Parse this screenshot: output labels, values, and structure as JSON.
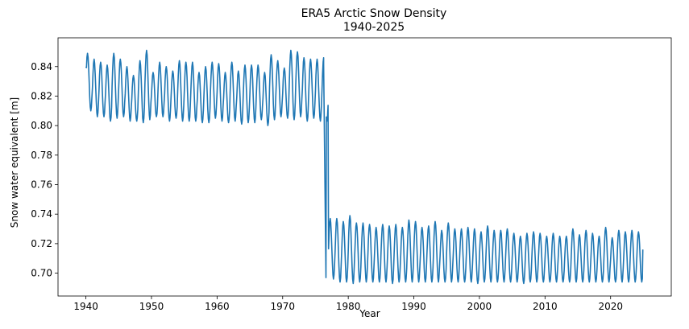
{
  "chart_data": {
    "type": "line",
    "title": "ERA5 Arctic Snow Density",
    "subtitle": "1940-2025",
    "xlabel": "Year",
    "ylabel": "Snow water equivalent [m]",
    "xlim": [
      1935.75,
      2029.25
    ],
    "ylim": [
      0.6845,
      0.8595
    ],
    "xticks": [
      1940,
      1950,
      1960,
      1970,
      1980,
      1990,
      2000,
      2010,
      2020
    ],
    "yticks": [
      0.7,
      0.72,
      0.74,
      0.76,
      0.78,
      0.8,
      0.82,
      0.84
    ],
    "ytick_labels": [
      "0.70",
      "0.72",
      "0.74",
      "0.76",
      "0.78",
      "0.80",
      "0.82",
      "0.84"
    ],
    "grid": false,
    "series_color": "#1f77b4",
    "series": [
      {
        "x_start": 1940.0,
        "x_step": 0.0833333,
        "seasonal_max": [
          0.849,
          0.845,
          0.843,
          0.841,
          0.849,
          0.845,
          0.84,
          0.834,
          0.844,
          0.851,
          0.836,
          0.843,
          0.84,
          0.837,
          0.844,
          0.843,
          0.843,
          0.836,
          0.84,
          0.843,
          0.842,
          0.836,
          0.843,
          0.837,
          0.841,
          0.841,
          0.841,
          0.836,
          0.848,
          0.844,
          0.839,
          0.851,
          0.85,
          0.846,
          0.845,
          0.845,
          0.846,
          0.737,
          0.737,
          0.735,
          0.739,
          0.734,
          0.734,
          0.733,
          0.731,
          0.733,
          0.732,
          0.733,
          0.731,
          0.736,
          0.735,
          0.731,
          0.732,
          0.735,
          0.729,
          0.734,
          0.73,
          0.73,
          0.731,
          0.73,
          0.728,
          0.732,
          0.729,
          0.729,
          0.73,
          0.727,
          0.725,
          0.727,
          0.728,
          0.727,
          0.725,
          0.727,
          0.725,
          0.725,
          0.73,
          0.726,
          0.729,
          0.727,
          0.725,
          0.731,
          0.724,
          0.729,
          0.728,
          0.729,
          0.728
        ],
        "seasonal_min": [
          0.81,
          0.806,
          0.806,
          0.803,
          0.805,
          0.806,
          0.803,
          0.803,
          0.802,
          0.804,
          0.806,
          0.806,
          0.803,
          0.805,
          0.803,
          0.803,
          0.803,
          0.802,
          0.802,
          0.805,
          0.803,
          0.802,
          0.803,
          0.801,
          0.802,
          0.802,
          0.804,
          0.8,
          0.804,
          0.806,
          0.805,
          0.804,
          0.806,
          0.803,
          0.805,
          0.803,
          0.803,
          0.696,
          0.694,
          0.694,
          0.693,
          0.694,
          0.694,
          0.694,
          0.694,
          0.694,
          0.693,
          0.694,
          0.694,
          0.694,
          0.694,
          0.694,
          0.694,
          0.694,
          0.694,
          0.694,
          0.694,
          0.694,
          0.694,
          0.693,
          0.694,
          0.694,
          0.694,
          0.694,
          0.694,
          0.694,
          0.693,
          0.694,
          0.694,
          0.694,
          0.694,
          0.694,
          0.694,
          0.694,
          0.694,
          0.694,
          0.694,
          0.694,
          0.694,
          0.694,
          0.694,
          0.694,
          0.694,
          0.694,
          0.694
        ],
        "start_value": 0.84,
        "end_value": 0.716,
        "transition": {
          "from_year": 1976.25,
          "from_value": 0.842,
          "to_year": 1976.6,
          "to_value": 0.697
        }
      }
    ]
  }
}
